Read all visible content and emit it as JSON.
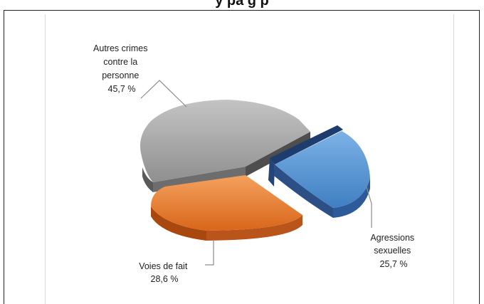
{
  "header": {
    "title_fragment": "y pa  g                 p"
  },
  "chart_data": {
    "type": "pie",
    "style": "3d-exploded",
    "slices": [
      {
        "label_lines": [
          "Autres crimes",
          "contre la",
          "personne"
        ],
        "percent_text": "45,7 %",
        "value": 45.7,
        "color": "#a6a6a6"
      },
      {
        "label_lines": [
          "Agressions",
          "sexuelles"
        ],
        "percent_text": "25,7 %",
        "value": 25.7,
        "color": "#5b9bd5"
      },
      {
        "label_lines": [
          "Voies de fait"
        ],
        "percent_text": "28,6 %",
        "value": 28.6,
        "color": "#ed7d31"
      }
    ],
    "legend": "none"
  }
}
